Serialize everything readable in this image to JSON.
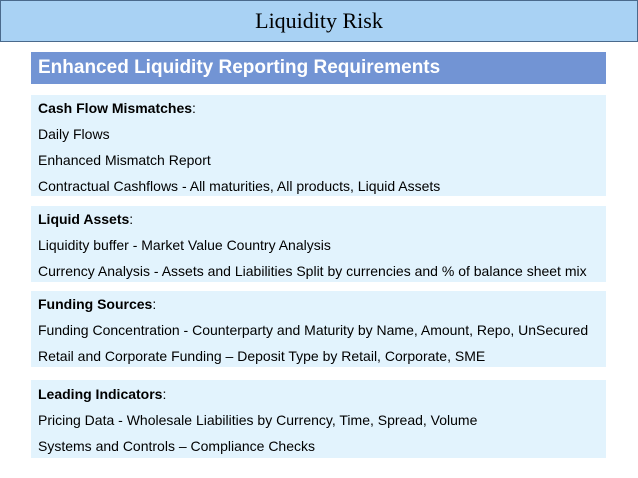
{
  "title": "Liquidity Risk",
  "heading": "Enhanced Liquidity Reporting Requirements",
  "sections": [
    {
      "label": "Cash Flow Mismatches",
      "items": [
        "Daily Flows",
        "Enhanced Mismatch Report",
        "Contractual Cashflows - All maturities, All products, Liquid Assets"
      ]
    },
    {
      "label": "Liquid Assets",
      "items": [
        "Liquidity buffer - Market Value Country Analysis",
        "Currency Analysis - Assets and Liabilities Split by currencies and % of balance sheet mix"
      ]
    },
    {
      "label": "Funding Sources",
      "items": [
        "Funding Concentration - Counterparty and Maturity by Name, Amount, Repo, UnSecured",
        "Retail and Corporate Funding – Deposit Type by Retail, Corporate, SME"
      ]
    },
    {
      "label": "Leading Indicators",
      "items": [
        "Pricing Data - Wholesale Liabilities by Currency, Time, Spread, Volume",
        "Systems and Controls – Compliance Checks"
      ]
    }
  ]
}
